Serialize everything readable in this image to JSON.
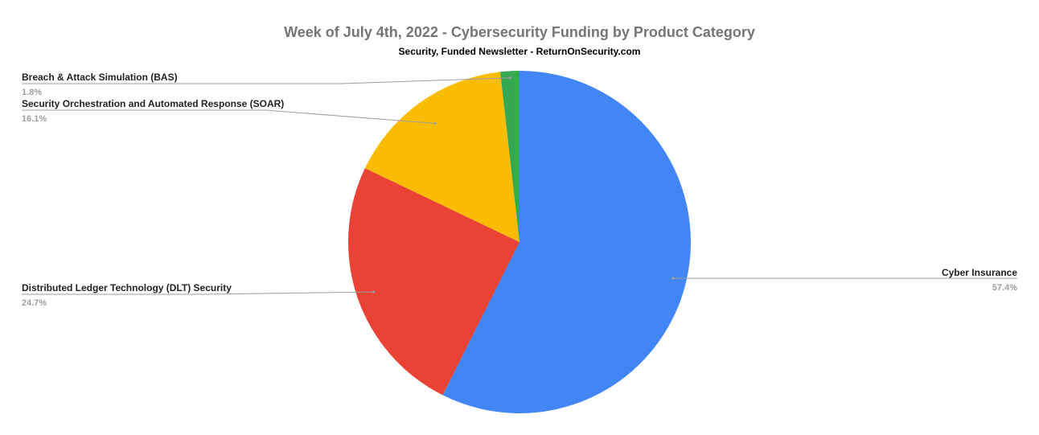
{
  "chart_data": {
    "type": "pie",
    "title": "Week of July 4th, 2022 - Cybersecurity Funding by Product Category",
    "subtitle": "Security, Funded Newsletter - ReturnOnSecurity.com",
    "start_angle_deg": 0,
    "direction": "clockwise",
    "slices": [
      {
        "label": "Cyber Insurance",
        "value": 57.4,
        "percent_label": "57.4%",
        "color": "#4285f4",
        "label_side": "right"
      },
      {
        "label": "Distributed Ledger Technology (DLT) Security",
        "value": 24.7,
        "percent_label": "24.7%",
        "color": "#ea4335",
        "label_side": "left"
      },
      {
        "label": "Security Orchestration and Automated Response (SOAR)",
        "value": 16.1,
        "percent_label": "16.1%",
        "color": "#fbbc04",
        "label_side": "left"
      },
      {
        "label": "Breach & Attack Simulation (BAS)",
        "value": 1.8,
        "percent_label": "1.8%",
        "color": "#34a853",
        "label_side": "left"
      }
    ]
  }
}
